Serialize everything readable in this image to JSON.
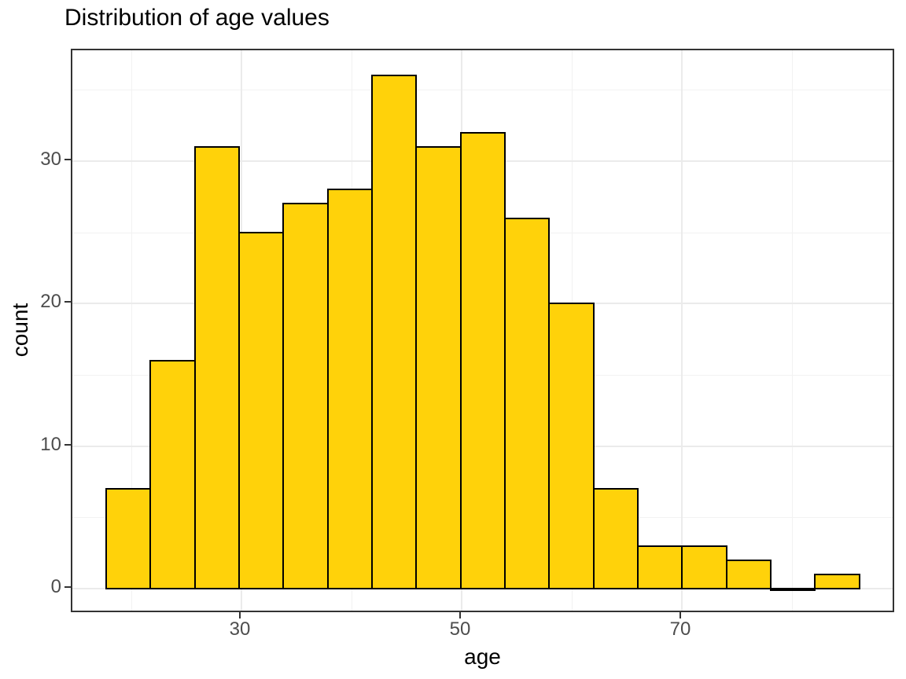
{
  "chart_data": {
    "type": "bar",
    "subtype": "histogram",
    "title": "Distribution of age values",
    "xlabel": "age",
    "ylabel": "count",
    "x_ticks": [
      30,
      50,
      70
    ],
    "x_minor_gridlines": [
      20,
      40,
      60,
      80
    ],
    "y_ticks": [
      0,
      10,
      20,
      30
    ],
    "y_minor_gridlines": [
      5,
      15,
      25,
      35
    ],
    "xlim": [
      14.6,
      89.4
    ],
    "ylim": [
      -1.8,
      37.8
    ],
    "bin_start": 17.71,
    "binwidth": 4.024,
    "counts": [
      7,
      16,
      31,
      25,
      27,
      28,
      36,
      31,
      32,
      26,
      20,
      7,
      3,
      3,
      2,
      0,
      1
    ],
    "grid": "on",
    "legend": "none",
    "colors": {
      "bar_fill": "#FFD20A",
      "bar_stroke": "#000000",
      "grid_major": "#EBEBEB",
      "grid_minor": "#F2F2F2",
      "panel_border": "#333333",
      "tick_label": "#4D4D4D",
      "text": "#000000",
      "background": "#FFFFFF"
    }
  }
}
